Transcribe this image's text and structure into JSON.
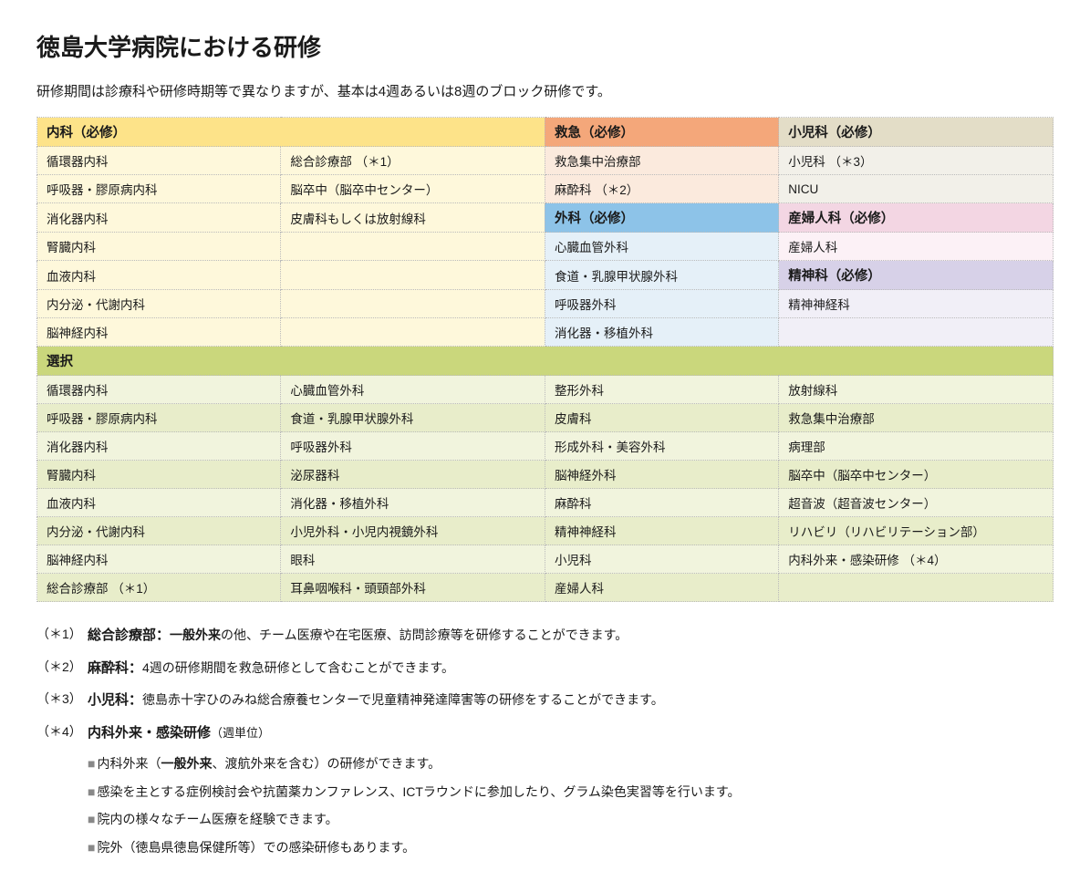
{
  "title": "徳島大学病院における研修",
  "intro": "研修期間は診療科や研修時期等で異なりますが、基本は4週あるいは8週のブロック研修です。",
  "headers": {
    "naika": "内科（必修）",
    "kyukyu": "救急（必修）",
    "shounika": "小児科（必修）",
    "geka": "外科（必修）",
    "sanfujinka": "産婦人科（必修）",
    "seishinka": "精神科（必修）",
    "sentaku": "選択"
  },
  "naika_col1": [
    "循環器内科",
    "呼吸器・膠原病内科",
    "消化器内科",
    "腎臓内科",
    "血液内科",
    "内分泌・代謝内科",
    "脳神経内科"
  ],
  "naika_col2": [
    "総合診療部 （＊1）",
    "脳卒中（脳卒中センター）",
    "皮膚科もしくは放射線科",
    "",
    "",
    "",
    ""
  ],
  "kyukyu": [
    "救急集中治療部",
    "麻酔科 （＊2）"
  ],
  "shounika": [
    "小児科 （＊3）",
    "NICU"
  ],
  "geka": [
    "心臓血管外科",
    "食道・乳腺甲状腺外科",
    "呼吸器外科",
    "消化器・移植外科"
  ],
  "sanfujinka_item": "産婦人科",
  "seishinka_item": "精神神経科",
  "sentaku_col1": [
    "循環器内科",
    "呼吸器・膠原病内科",
    "消化器内科",
    "腎臓内科",
    "血液内科",
    "内分泌・代謝内科",
    "脳神経内科",
    "総合診療部 （＊1）"
  ],
  "sentaku_col2": [
    "心臓血管外科",
    "食道・乳腺甲状腺外科",
    "呼吸器外科",
    "泌尿器科",
    "消化器・移植外科",
    "小児外科・小児内視鏡外科",
    "眼科",
    "耳鼻咽喉科・頭頸部外科"
  ],
  "sentaku_col3": [
    "整形外科",
    "皮膚科",
    "形成外科・美容外科",
    "脳神経外科",
    "麻酔科",
    "精神神経科",
    "小児科",
    "産婦人科"
  ],
  "sentaku_col4": [
    "放射線科",
    "救急集中治療部",
    "病理部",
    "脳卒中（脳卒中センター）",
    "超音波（超音波センター）",
    "リハビリ（リハビリテーション部）",
    "内科外来・感染研修 （＊4）",
    ""
  ],
  "footnotes": {
    "fn1": {
      "marker": "（＊1）",
      "label": "総合診療部：",
      "bold": "一般外来",
      "text": "の他、チーム医療や在宅医療、訪問診療等を研修することができます。"
    },
    "fn2": {
      "marker": "（＊2）",
      "label": "麻酔科：",
      "text": "4週の研修期間を救急研修として含むことができます。"
    },
    "fn3": {
      "marker": "（＊3）",
      "label": "小児科：",
      "text": "徳島赤十字ひのみね総合療養センターで児童精神発達障害等の研修をすることができます。"
    },
    "fn4": {
      "marker": "（＊4）",
      "label": "内科外来・感染研修",
      "suffix": "（週単位）"
    }
  },
  "bullets": [
    {
      "pre": "内科外来（",
      "bold": "一般外来",
      "post": "、渡航外来を含む）の研修ができます。"
    },
    {
      "text": "感染を主とする症例検討会や抗菌薬カンファレンス、ICTラウンドに参加したり、グラム染色実習等を行います。"
    },
    {
      "text": "院内の様々なチーム医療を経験できます。"
    },
    {
      "text": "院外（徳島県徳島保健所等）での感染研修もあります。"
    }
  ]
}
